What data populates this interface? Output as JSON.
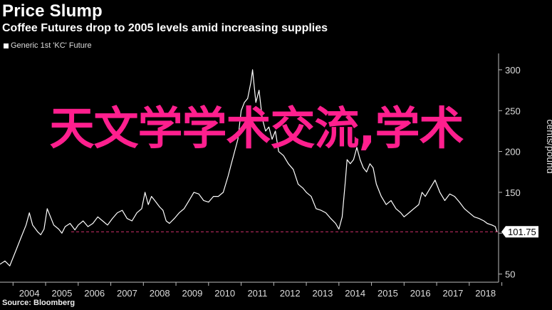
{
  "header": {
    "title": "Price Slump",
    "subtitle": "Coffee Futures drop to 2005 levels amid increasing supplies"
  },
  "source": "Source: Bloomberg",
  "watermark": "天文学学术交流,学术",
  "colors": {
    "line": "#ffffff",
    "reference": "#d0306a",
    "watermark": "#ff1f8e",
    "background": "#000000"
  },
  "chart_data": {
    "type": "line",
    "title": "Price Slump",
    "subtitle": "Coffee Futures drop to 2005 levels amid increasing supplies",
    "ylabel": "cents/pound",
    "ylim": [
      40,
      320
    ],
    "xlim": [
      2003.6,
      2018.9
    ],
    "y_ticks": [
      50,
      100,
      150,
      200,
      250,
      300
    ],
    "x_ticks": [
      "2004",
      "2005",
      "2006",
      "2007",
      "2008",
      "2009",
      "2010",
      "2011",
      "2012",
      "2013",
      "2014",
      "2015",
      "2016",
      "2017",
      "2018"
    ],
    "legend": {
      "position": "top-left"
    },
    "last_value": 101.75,
    "last_value_label": "101.75",
    "reference_line": 101.75,
    "series": [
      {
        "name": "Generic 1st 'KC' Future",
        "x": [
          2003.6,
          2003.75,
          2003.9,
          2004.0,
          2004.1,
          2004.25,
          2004.4,
          2004.5,
          2004.6,
          2004.75,
          2004.85,
          2004.95,
          2005.05,
          2005.15,
          2005.25,
          2005.4,
          2005.5,
          2005.6,
          2005.75,
          2005.9,
          2006.0,
          2006.15,
          2006.3,
          2006.45,
          2006.6,
          2006.75,
          2006.9,
          2007.05,
          2007.2,
          2007.35,
          2007.5,
          2007.65,
          2007.8,
          2007.95,
          2008.05,
          2008.15,
          2008.25,
          2008.35,
          2008.5,
          2008.6,
          2008.7,
          2008.8,
          2008.95,
          2009.1,
          2009.25,
          2009.4,
          2009.55,
          2009.7,
          2009.85,
          2010.0,
          2010.15,
          2010.3,
          2010.45,
          2010.6,
          2010.7,
          2010.8,
          2010.9,
          2011.0,
          2011.1,
          2011.2,
          2011.3,
          2011.35,
          2011.45,
          2011.55,
          2011.65,
          2011.75,
          2011.85,
          2011.95,
          2012.05,
          2012.15,
          2012.3,
          2012.45,
          2012.6,
          2012.75,
          2012.9,
          2013.0,
          2013.15,
          2013.3,
          2013.45,
          2013.6,
          2013.75,
          2013.9,
          2014.0,
          2014.1,
          2014.2,
          2014.25,
          2014.35,
          2014.45,
          2014.55,
          2014.65,
          2014.75,
          2014.85,
          2014.95,
          2015.05,
          2015.15,
          2015.3,
          2015.45,
          2015.6,
          2015.75,
          2015.9,
          2016.0,
          2016.15,
          2016.3,
          2016.45,
          2016.55,
          2016.65,
          2016.8,
          2016.95,
          2017.1,
          2017.25,
          2017.4,
          2017.55,
          2017.7,
          2017.85,
          2018.0,
          2018.15,
          2018.3,
          2018.45,
          2018.55,
          2018.7,
          2018.8,
          2018.85
        ],
        "values": [
          62,
          66,
          60,
          70,
          80,
          95,
          110,
          125,
          110,
          102,
          98,
          105,
          130,
          120,
          110,
          105,
          100,
          108,
          112,
          104,
          110,
          115,
          108,
          112,
          120,
          115,
          110,
          118,
          125,
          128,
          118,
          115,
          125,
          130,
          150,
          135,
          145,
          140,
          132,
          128,
          115,
          112,
          118,
          125,
          130,
          140,
          150,
          148,
          140,
          138,
          145,
          145,
          150,
          170,
          185,
          200,
          215,
          250,
          260,
          265,
          285,
          300,
          260,
          275,
          240,
          225,
          230,
          215,
          225,
          200,
          195,
          185,
          178,
          160,
          155,
          150,
          145,
          130,
          128,
          125,
          118,
          112,
          105,
          120,
          165,
          190,
          185,
          190,
          205,
          190,
          180,
          175,
          185,
          180,
          160,
          145,
          135,
          140,
          130,
          125,
          120,
          125,
          130,
          135,
          150,
          145,
          155,
          165,
          150,
          140,
          148,
          145,
          138,
          130,
          125,
          120,
          118,
          115,
          112,
          110,
          108,
          101.75
        ]
      }
    ]
  }
}
